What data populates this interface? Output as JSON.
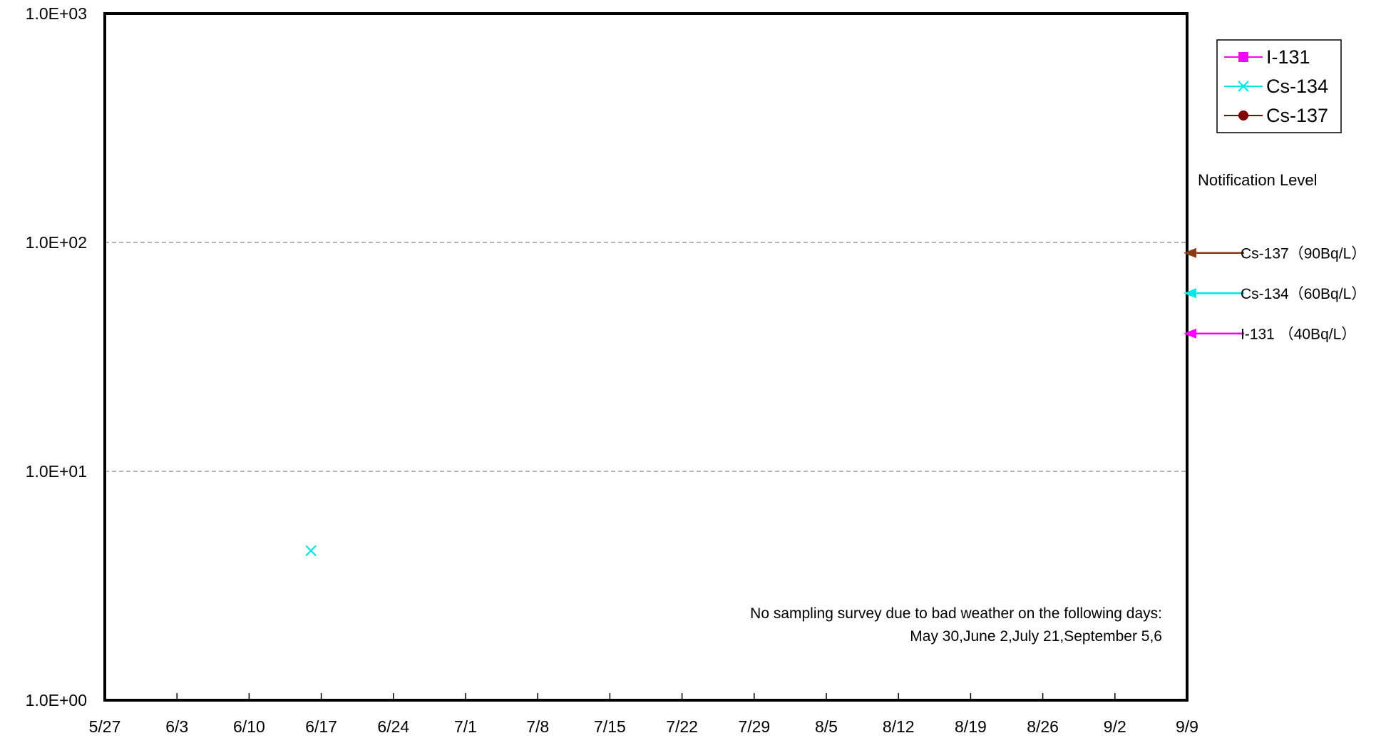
{
  "chart_data": {
    "type": "scatter",
    "title": "",
    "xlabel": "",
    "ylabel": "",
    "x_ticks": [
      "5/27",
      "6/3",
      "6/10",
      "6/17",
      "6/24",
      "7/1",
      "7/8",
      "7/15",
      "7/22",
      "7/29",
      "8/5",
      "8/12",
      "8/19",
      "8/26",
      "9/2",
      "9/9"
    ],
    "x_tick_interval_days": 7,
    "y_scale": "log",
    "ylim": [
      1,
      1000
    ],
    "y_ticks": [
      {
        "value": 1,
        "label": "1.0E+00"
      },
      {
        "value": 10,
        "label": "1.0E+01"
      },
      {
        "value": 100,
        "label": "1.0E+02"
      },
      {
        "value": 1000,
        "label": "1.0E+03"
      }
    ],
    "grid": "dashed horizontal at 1.0E+01 and 1.0E+02",
    "legend_position": "top-right",
    "series": [
      {
        "name": "I-131",
        "color": "#ff00ff",
        "marker": "square",
        "points": []
      },
      {
        "name": "Cs-134",
        "color": "#00e5e5",
        "marker": "x",
        "points": [
          {
            "x": "6/16",
            "y": 4.5
          }
        ]
      },
      {
        "name": "Cs-137",
        "color": "#800000",
        "marker": "circle",
        "points": []
      }
    ],
    "notification_title": "Notification Level",
    "notification_levels": [
      {
        "label": "Cs-137（90Bq/L）",
        "value": 90,
        "color": "#8b3a14"
      },
      {
        "label": "Cs-134（60Bq/L）",
        "value": 60,
        "color": "#00e5e5"
      },
      {
        "label": "I-131 （40Bq/L）",
        "value": 40,
        "color": "#ff00ff"
      }
    ],
    "annotation_lines": [
      "No sampling survey due to bad weather on the following days:",
      "May 30,June 2,July 21,September 5,6"
    ]
  }
}
